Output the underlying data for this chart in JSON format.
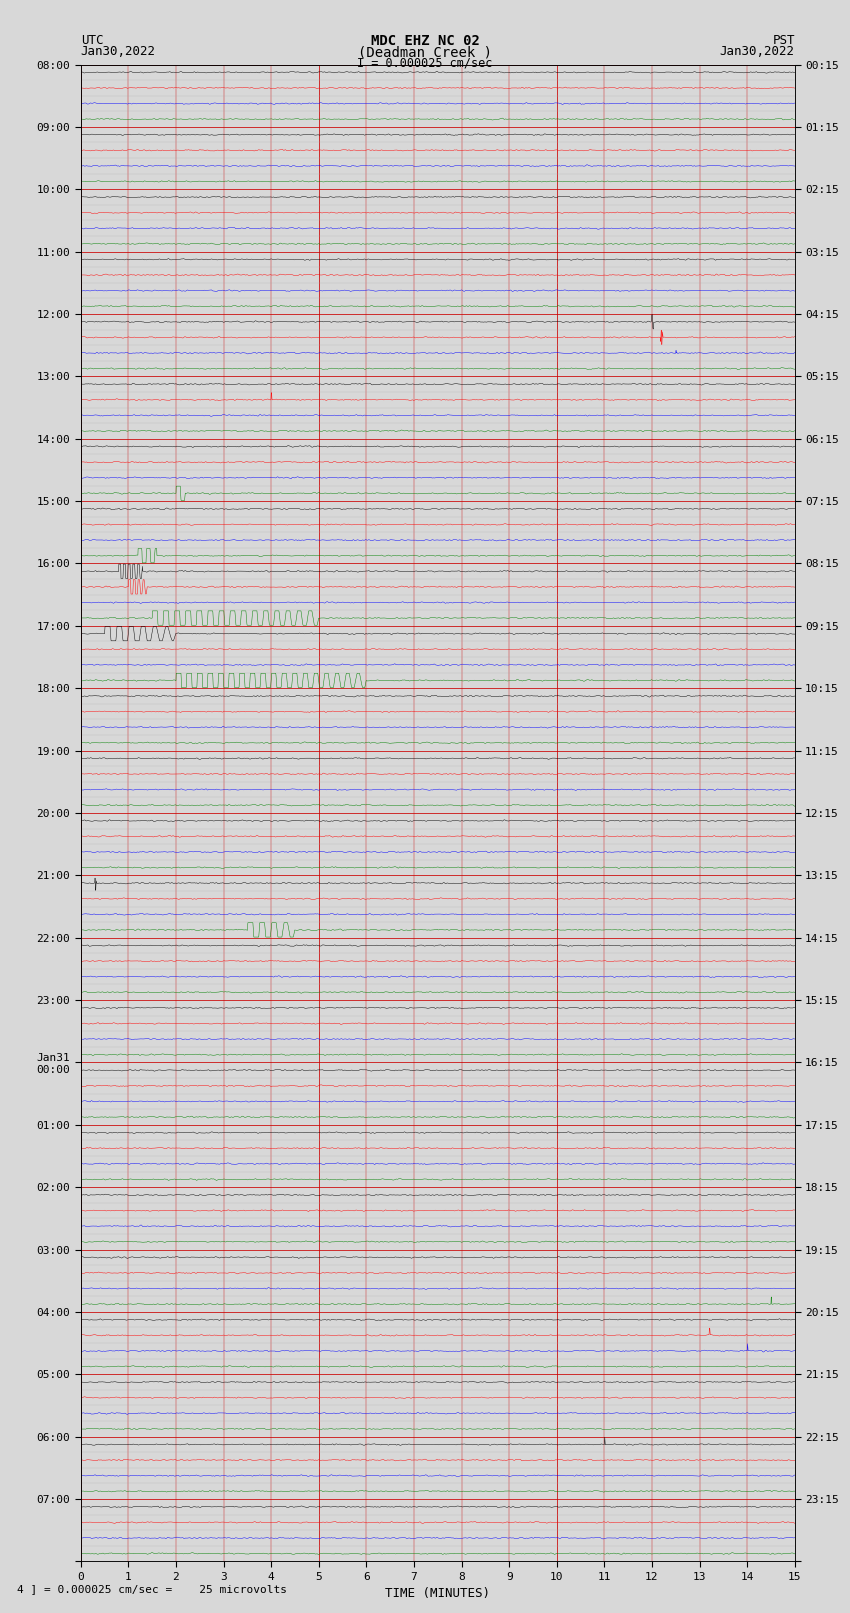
{
  "title_line1": "MDC EHZ NC 02",
  "title_line2": "(Deadman Creek )",
  "title_line3": "I = 0.000025 cm/sec",
  "left_label_top": "UTC",
  "left_label_date": "Jan30,2022",
  "right_label_top": "PST",
  "right_label_date": "Jan30,2022",
  "xlabel": "TIME (MINUTES)",
  "bottom_note": "4 ] = 0.000025 cm/sec =    25 microvolts",
  "fig_width": 8.5,
  "fig_height": 16.13,
  "dpi": 100,
  "xlim": [
    0,
    15
  ],
  "xticks": [
    0,
    1,
    2,
    3,
    4,
    5,
    6,
    7,
    8,
    9,
    10,
    11,
    12,
    13,
    14,
    15
  ],
  "bg_color": "#d8d8d8",
  "plot_bg_color": "#d8d8d8",
  "colors": [
    "black",
    "red",
    "blue",
    "green"
  ],
  "utc_hour_labels": [
    "08:00",
    "09:00",
    "10:00",
    "11:00",
    "12:00",
    "13:00",
    "14:00",
    "15:00",
    "16:00",
    "17:00",
    "18:00",
    "19:00",
    "20:00",
    "21:00",
    "22:00",
    "23:00",
    "Jan31\n00:00",
    "01:00",
    "02:00",
    "03:00",
    "04:00",
    "05:00",
    "06:00",
    "07:00"
  ],
  "pst_hour_labels": [
    "00:15",
    "01:15",
    "02:15",
    "03:15",
    "04:15",
    "05:15",
    "06:15",
    "07:15",
    "08:15",
    "09:15",
    "10:15",
    "11:15",
    "12:15",
    "13:15",
    "14:15",
    "15:15",
    "16:15",
    "17:15",
    "18:15",
    "19:15",
    "20:15",
    "21:15",
    "22:15",
    "23:15"
  ],
  "num_rows": 96,
  "noise_amplitude": 0.06,
  "grid_color_major": "#cc0000",
  "grid_color_minor": "#aaaaaa"
}
